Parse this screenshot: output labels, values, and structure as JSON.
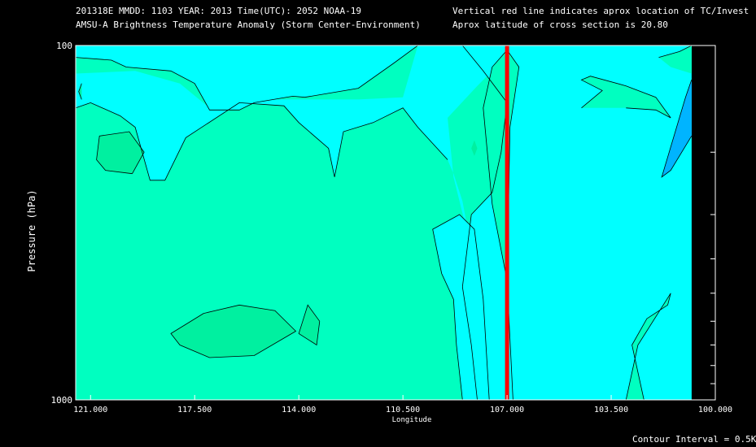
{
  "header": {
    "line1_left": "201318E  MMDD: 1103 YEAR: 2013 Time(UTC): 2052 NOAA-19",
    "line2_left": "AMSU-A Brightness Temperature Anomaly (Storm Center-Environment)",
    "line1_right": "Vertical red line indicates aprox location of TC/Invest",
    "line2_right": "Aprox latitude of cross section is 20.80"
  },
  "footer": {
    "contour_interval": "Contour Interval = 0.5K"
  },
  "chart_data": {
    "type": "heatmap",
    "title": "AMSU-A Brightness Temperature Anomaly (Storm Center-Environment)",
    "xlabel": "Longitude",
    "ylabel": "Pressure (hPa)",
    "xlim": [
      121.5,
      100.0
    ],
    "ylim": [
      1000,
      100
    ],
    "y_scale": "log",
    "x_ticks": [
      "121.000",
      "117.500",
      "114.000",
      "110.500",
      "107.000",
      "103.500",
      "100.000"
    ],
    "x_tick_values": [
      121.0,
      117.5,
      114.0,
      110.5,
      107.0,
      103.5,
      100.0
    ],
    "y_tick_labels": [
      "100",
      "1000"
    ],
    "y_tick_values": [
      100,
      1000
    ],
    "y_minor_ticks": [
      200,
      300,
      400,
      500,
      600,
      700,
      800,
      900
    ],
    "tc_longitude": 107.0,
    "tc_line_color": "#ff0000",
    "contour_interval_K": 0.5,
    "data_extent_lon": [
      121.5,
      100.8
    ],
    "colors": {
      "level_0": "#00ffff",
      "level_1": "#00ffc0",
      "level_2": "#00f0a0",
      "level_neg": "#00b4ff",
      "background": "#000000",
      "text": "#ffffff"
    },
    "regions": [
      {
        "level": "level_1",
        "points": [
          [
            121.5,
            1000
          ],
          [
            108.0,
            1000
          ],
          [
            108.2,
            700
          ],
          [
            108.5,
            480
          ],
          [
            108.2,
            300
          ],
          [
            107.5,
            260
          ],
          [
            107.2,
            200
          ],
          [
            107.0,
            145
          ],
          [
            107.8,
            118
          ],
          [
            108.5,
            100
          ],
          [
            121.5,
            100
          ]
        ]
      },
      {
        "level": "level_0",
        "points": [
          [
            121.5,
            100
          ],
          [
            110.0,
            100
          ],
          [
            110.8,
            112
          ],
          [
            112.0,
            132
          ],
          [
            113.8,
            140
          ],
          [
            114.2,
            139
          ],
          [
            115.5,
            145
          ],
          [
            116.0,
            152
          ],
          [
            117.0,
            152
          ],
          [
            117.5,
            128
          ],
          [
            118.3,
            118
          ],
          [
            119.8,
            115
          ],
          [
            120.3,
            110
          ],
          [
            121.5,
            108
          ]
        ]
      },
      {
        "level": "level_0",
        "points": [
          [
            121.5,
            150
          ],
          [
            121.0,
            145
          ],
          [
            120.0,
            158
          ],
          [
            119.5,
            170
          ],
          [
            119.0,
            240
          ],
          [
            118.5,
            240
          ],
          [
            117.8,
            182
          ],
          [
            116.0,
            145
          ],
          [
            114.5,
            148
          ],
          [
            114.0,
            165
          ],
          [
            113.0,
            195
          ],
          [
            112.8,
            235
          ],
          [
            112.5,
            175
          ],
          [
            111.5,
            165
          ],
          [
            110.5,
            150
          ],
          [
            110.0,
            170
          ],
          [
            109.0,
            210
          ],
          [
            108.8,
            230
          ],
          [
            108.5,
            275
          ],
          [
            108.2,
            375
          ],
          [
            108.8,
            235
          ],
          [
            109.0,
            160
          ],
          [
            108.0,
            130
          ],
          [
            107.5,
            118
          ],
          [
            107.2,
            108
          ],
          [
            106.5,
            120
          ],
          [
            105.5,
            135
          ],
          [
            104.5,
            125
          ],
          [
            103.5,
            112
          ],
          [
            102.0,
            120
          ],
          [
            101.2,
            100
          ],
          [
            110.0,
            100
          ],
          [
            110.5,
            140
          ],
          [
            112.0,
            142
          ],
          [
            115.0,
            142
          ],
          [
            117.0,
            150
          ],
          [
            118.0,
            128
          ],
          [
            119.5,
            118
          ],
          [
            121.5,
            120
          ]
        ]
      },
      {
        "level": "level_0",
        "points": [
          [
            108.5,
            1000
          ],
          [
            108.7,
            700
          ],
          [
            108.8,
            520
          ],
          [
            109.2,
            440
          ],
          [
            109.5,
            330
          ],
          [
            108.6,
            300
          ],
          [
            108.1,
            330
          ],
          [
            107.8,
            520
          ],
          [
            107.6,
            1000
          ]
        ]
      },
      {
        "level": "level_0",
        "points": [
          [
            106.8,
            1000
          ],
          [
            106.8,
            100
          ],
          [
            100.8,
            100
          ],
          [
            100.8,
            1000
          ]
        ]
      },
      {
        "level": "level_1",
        "points": [
          [
            107.0,
            460
          ],
          [
            107.5,
            280
          ],
          [
            107.8,
            150
          ],
          [
            107.5,
            115
          ],
          [
            107.0,
            103
          ],
          [
            106.6,
            115
          ],
          [
            106.9,
            170
          ],
          [
            107.0,
            460
          ]
        ]
      },
      {
        "level": "level_1",
        "points": [
          [
            104.5,
            150
          ],
          [
            103.8,
            134
          ],
          [
            104.5,
            125
          ],
          [
            104.2,
            122
          ],
          [
            103.0,
            130
          ],
          [
            102.0,
            140
          ],
          [
            101.5,
            160
          ],
          [
            102.0,
            152
          ],
          [
            103.0,
            150
          ]
        ]
      },
      {
        "level": "level_1",
        "points": [
          [
            102.4,
            1000
          ],
          [
            102.8,
            700
          ],
          [
            102.3,
            590
          ],
          [
            101.6,
            540
          ],
          [
            101.5,
            500
          ],
          [
            102.6,
            700
          ],
          [
            103.0,
            1000
          ]
        ]
      },
      {
        "level": "level_1",
        "points": [
          [
            101.9,
            108
          ],
          [
            101.2,
            104
          ],
          [
            100.8,
            100
          ],
          [
            100.8,
            120
          ],
          [
            101.5,
            115
          ]
        ]
      },
      {
        "level": "level_neg",
        "points": [
          [
            100.8,
            180
          ],
          [
            101.5,
            225
          ],
          [
            101.8,
            235
          ],
          [
            101.0,
            140
          ],
          [
            100.8,
            125
          ]
        ]
      },
      {
        "level": "level_2",
        "points": [
          [
            119.6,
            230
          ],
          [
            120.5,
            225
          ],
          [
            120.8,
            210
          ],
          [
            120.7,
            180
          ],
          [
            119.7,
            175
          ],
          [
            119.2,
            200
          ]
        ]
      },
      {
        "level": "level_2",
        "points": [
          [
            117.2,
            570
          ],
          [
            116.0,
            540
          ],
          [
            114.8,
            560
          ],
          [
            114.1,
            640
          ],
          [
            115.5,
            750
          ],
          [
            117.0,
            760
          ],
          [
            118.0,
            700
          ],
          [
            118.3,
            650
          ]
        ]
      },
      {
        "level": "level_2",
        "points": [
          [
            113.3,
            600
          ],
          [
            113.7,
            540
          ],
          [
            114.0,
            650
          ],
          [
            113.4,
            700
          ]
        ]
      },
      {
        "level": "level_2",
        "points": [
          [
            121.3,
            128
          ],
          [
            121.4,
            135
          ],
          [
            121.3,
            142
          ]
        ]
      },
      {
        "level": "level_2",
        "points": [
          [
            108.1,
            205
          ],
          [
            108.0,
            195
          ],
          [
            108.1,
            185
          ],
          [
            108.2,
            195
          ]
        ]
      }
    ],
    "contour_lines": [
      [
        [
          121.5,
          108
        ],
        [
          120.3,
          110
        ],
        [
          119.8,
          115
        ],
        [
          118.3,
          118
        ],
        [
          117.5,
          128
        ],
        [
          117.0,
          152
        ],
        [
          116.0,
          152
        ],
        [
          115.5,
          145
        ],
        [
          114.2,
          139
        ],
        [
          113.8,
          140
        ],
        [
          112.0,
          132
        ],
        [
          110.8,
          112
        ],
        [
          110.0,
          100
        ]
      ],
      [
        [
          121.5,
          150
        ],
        [
          121.0,
          145
        ],
        [
          120.0,
          158
        ],
        [
          119.5,
          170
        ],
        [
          119.0,
          240
        ],
        [
          118.5,
          240
        ],
        [
          117.8,
          182
        ],
        [
          116.0,
          145
        ],
        [
          114.5,
          148
        ],
        [
          114.0,
          165
        ],
        [
          113.0,
          195
        ],
        [
          112.8,
          235
        ],
        [
          112.5,
          175
        ],
        [
          111.5,
          165
        ],
        [
          110.5,
          150
        ],
        [
          110.0,
          170
        ],
        [
          109.0,
          210
        ]
      ],
      [
        [
          121.3,
          128
        ],
        [
          121.4,
          135
        ],
        [
          121.3,
          142
        ]
      ],
      [
        [
          119.6,
          230
        ],
        [
          120.5,
          225
        ],
        [
          120.8,
          210
        ],
        [
          120.7,
          180
        ],
        [
          119.7,
          175
        ],
        [
          119.2,
          200
        ],
        [
          119.6,
          230
        ]
      ],
      [
        [
          117.2,
          570
        ],
        [
          116.0,
          540
        ],
        [
          114.8,
          560
        ],
        [
          114.1,
          640
        ],
        [
          115.5,
          750
        ],
        [
          117.0,
          760
        ],
        [
          118.0,
          700
        ],
        [
          118.3,
          650
        ],
        [
          117.2,
          570
        ]
      ],
      [
        [
          113.3,
          600
        ],
        [
          113.7,
          540
        ],
        [
          114.0,
          650
        ],
        [
          113.4,
          700
        ],
        [
          113.3,
          600
        ]
      ],
      [
        [
          108.5,
          1000
        ],
        [
          108.7,
          700
        ],
        [
          108.8,
          520
        ],
        [
          109.2,
          440
        ],
        [
          109.5,
          330
        ],
        [
          108.6,
          300
        ],
        [
          108.1,
          330
        ],
        [
          107.8,
          520
        ],
        [
          107.6,
          1000
        ]
      ],
      [
        [
          108.0,
          1000
        ],
        [
          108.2,
          700
        ],
        [
          108.5,
          480
        ],
        [
          108.2,
          300
        ],
        [
          107.5,
          260
        ],
        [
          107.2,
          200
        ],
        [
          107.0,
          145
        ],
        [
          107.8,
          118
        ],
        [
          108.5,
          100
        ]
      ],
      [
        [
          106.8,
          1000
        ],
        [
          107.0,
          460
        ],
        [
          107.5,
          280
        ],
        [
          107.8,
          150
        ],
        [
          107.5,
          115
        ],
        [
          107.0,
          103
        ],
        [
          106.6,
          115
        ],
        [
          106.9,
          170
        ],
        [
          107.0,
          460
        ]
      ],
      [
        [
          102.4,
          1000
        ],
        [
          102.8,
          700
        ],
        [
          102.3,
          590
        ],
        [
          101.6,
          540
        ],
        [
          101.5,
          500
        ],
        [
          102.6,
          700
        ],
        [
          103.0,
          1000
        ]
      ],
      [
        [
          104.5,
          150
        ],
        [
          103.8,
          134
        ],
        [
          104.5,
          125
        ],
        [
          104.2,
          122
        ],
        [
          103.0,
          130
        ],
        [
          102.0,
          140
        ],
        [
          101.5,
          160
        ],
        [
          102.0,
          152
        ],
        [
          103.0,
          150
        ]
      ],
      [
        [
          101.9,
          108
        ],
        [
          101.2,
          104
        ],
        [
          100.8,
          100
        ]
      ],
      [
        [
          100.8,
          180
        ],
        [
          101.5,
          225
        ],
        [
          101.8,
          235
        ],
        [
          101.0,
          140
        ],
        [
          100.8,
          125
        ]
      ]
    ]
  }
}
